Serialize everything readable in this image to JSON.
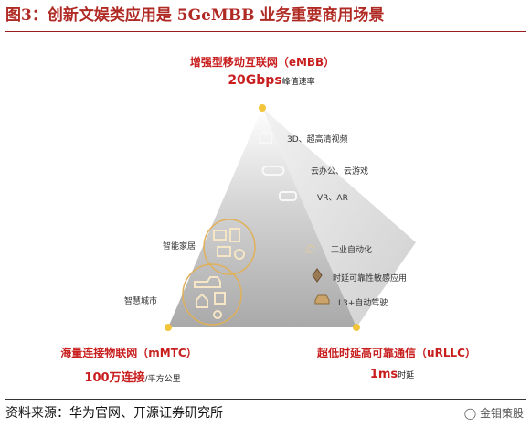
{
  "title": "图3：创新文娱类应用是 5GeMBB 业务重要商用场景",
  "source": "资料来源：华为官网、开源证券研究所",
  "watermark": "金钼策股",
  "diagram": {
    "top": {
      "name": "增强型移动互联网（eMBB）",
      "metric": "20Gbps",
      "metric_note": "峰值速率"
    },
    "left": {
      "name": "海量连接物联网（mMTC）",
      "metric": "100万连接",
      "metric_note": "/平方公里"
    },
    "right": {
      "name": "超低时延高可靠通信（uRLLC）",
      "metric": "1ms",
      "metric_note": "时延"
    },
    "embb_apps": [
      "3D、超高清视频",
      "云办公、云游戏",
      "VR、AR"
    ],
    "urllc_apps": [
      "工业自动化",
      "时延可靠性敏感应用",
      "L3+自动驾驶"
    ],
    "mmtc_apps": [
      "智能家居",
      "智慧城市"
    ]
  },
  "colors": {
    "accent": "#c81e1e",
    "title": "#b02a24",
    "vertex": "#f2c43a"
  }
}
